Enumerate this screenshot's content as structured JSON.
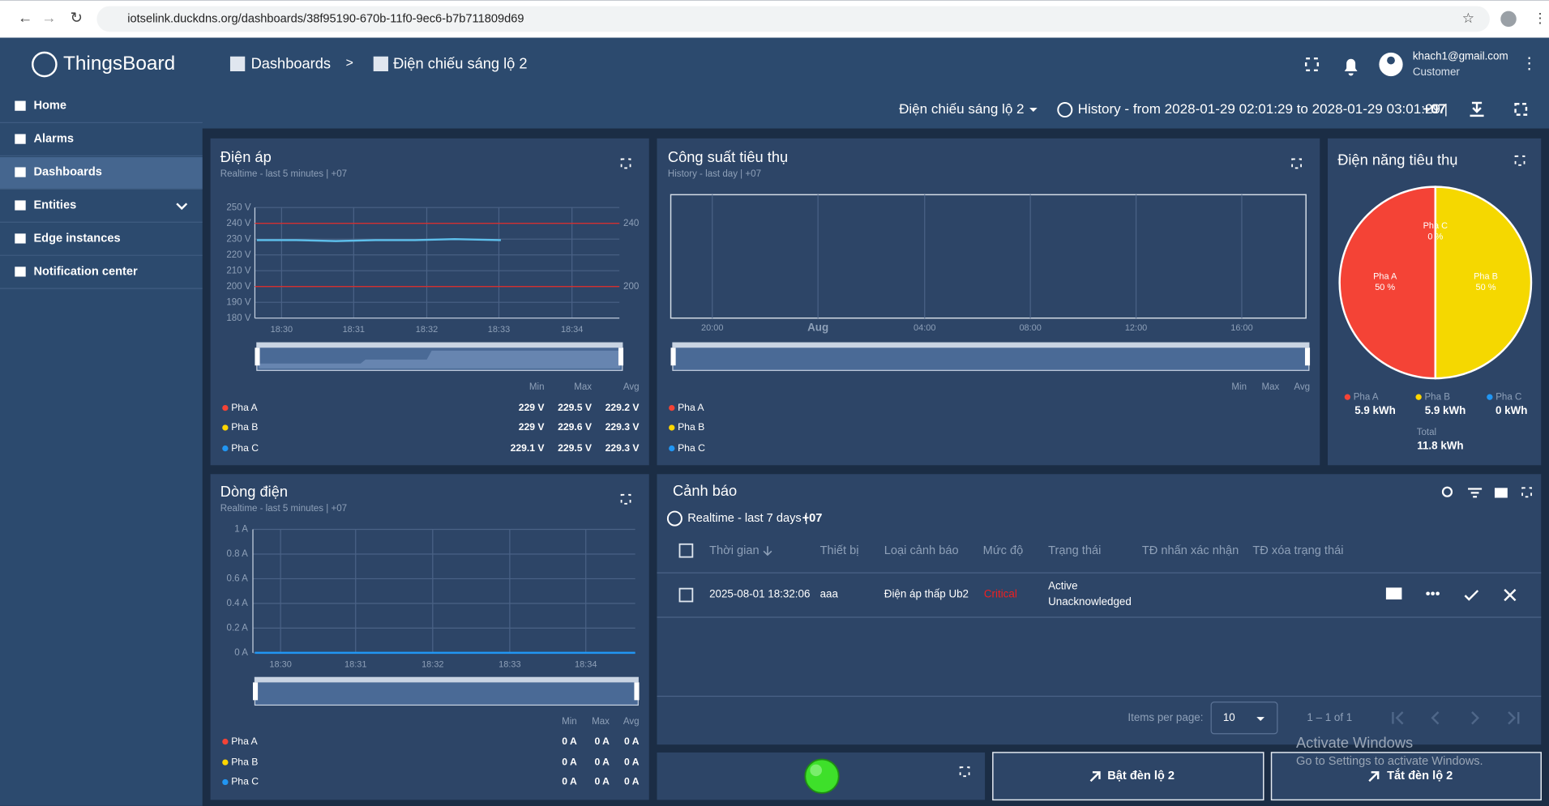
{
  "browser": {
    "url": "iotselink.duckdns.org/dashboards/38f95190-670b-11f0-9ec6-b7b711809d69"
  },
  "sidebar": {
    "logo": "ThingsBoard",
    "menu": [
      "Home",
      "Alarms",
      "Dashboards",
      "Entities",
      "Edge instances",
      "Notification center"
    ]
  },
  "header": {
    "breadcrumb": [
      "Dashboards",
      "Điện chiếu sáng lộ 2"
    ],
    "separator": ">",
    "user": {
      "email": "khach1@gmail.com",
      "role": "Customer"
    }
  },
  "toolbar": {
    "state": "Điện chiếu sáng lộ 2",
    "history": "History - from 2028-01-29 02:01:29 to 2028-01-29 03:01:29 |",
    "timezone": "+07"
  },
  "widgets": {
    "voltage": {
      "title": "Điện áp",
      "subtitle": "Realtime - last 5 minutes | +07",
      "yticks": [
        "250 V",
        "240 V",
        "230 V",
        "220 V",
        "210 V",
        "200 V",
        "190 V",
        "180 V"
      ],
      "xticks": [
        "18:30",
        "18:31",
        "18:32",
        "18:33",
        "18:34"
      ],
      "thresholds": [
        "240",
        "200"
      ],
      "legend_headers": [
        "Min",
        "Max",
        "Avg"
      ],
      "legend": [
        {
          "name": "Pha A",
          "color": "#f44336",
          "min": "229 V",
          "max": "229.5 V",
          "avg": "229.2 V"
        },
        {
          "name": "Pha B",
          "color": "#ffd600",
          "min": "229 V",
          "max": "229.6 V",
          "avg": "229.3 V"
        },
        {
          "name": "Pha C",
          "color": "#2196f3",
          "min": "229.1 V",
          "max": "229.5 V",
          "avg": "229.3 V"
        }
      ]
    },
    "power": {
      "title": "Công suất tiêu thụ",
      "subtitle": "History - last day | +07",
      "xticks": [
        "20:00",
        "Aug",
        "04:00",
        "08:00",
        "12:00",
        "16:00"
      ],
      "legend_headers": [
        "Min",
        "Max",
        "Avg"
      ],
      "legend": [
        {
          "name": "Pha A",
          "color": "#f44336"
        },
        {
          "name": "Pha B",
          "color": "#ffd600"
        },
        {
          "name": "Pha C",
          "color": "#2196f3"
        }
      ]
    },
    "energy": {
      "title": "Điện năng tiêu thụ",
      "slices": [
        {
          "name": "Pha A",
          "label": "50 %"
        },
        {
          "name": "Pha B",
          "label": "50 %"
        },
        {
          "name": "Pha C",
          "label": "0 %"
        }
      ],
      "legend": [
        {
          "name": "Pha A",
          "color": "#f44336",
          "value": "5.9 kWh"
        },
        {
          "name": "Pha B",
          "color": "#ffd600",
          "value": "5.9 kWh"
        },
        {
          "name": "Pha C",
          "color": "#2196f3",
          "value": "0 kWh"
        }
      ],
      "total": {
        "name": "Total",
        "value": "11.8 kWh"
      }
    },
    "current": {
      "title": "Dòng điện",
      "subtitle": "Realtime - last 5 minutes | +07",
      "yticks": [
        "1 A",
        "0.8 A",
        "0.6 A",
        "0.4 A",
        "0.2 A",
        "0 A"
      ],
      "xticks": [
        "18:30",
        "18:31",
        "18:32",
        "18:33",
        "18:34"
      ],
      "legend_headers": [
        "Min",
        "Max",
        "Avg"
      ],
      "legend": [
        {
          "name": "Pha A",
          "color": "#f44336",
          "min": "0 A",
          "max": "0 A",
          "avg": "0 A"
        },
        {
          "name": "Pha B",
          "color": "#ffd600",
          "min": "0 A",
          "max": "0 A",
          "avg": "0 A"
        },
        {
          "name": "Pha C",
          "color": "#2196f3",
          "min": "0 A",
          "max": "0 A",
          "avg": "0 A"
        }
      ]
    },
    "alarms": {
      "title": "Cảnh báo",
      "time": "Realtime - last 7 days |",
      "timezone": "+07",
      "columns": [
        "Thời gian",
        "Thiết bị",
        "Loại cảnh báo",
        "Mức độ",
        "Trạng thái",
        "TĐ nhấn xác nhận",
        "TĐ xóa trạng thái"
      ],
      "rows": [
        {
          "time": "2025-08-01 18:32:06",
          "device": "aaa",
          "type": "Điện áp thấp Ub2",
          "severity": "Critical",
          "status": [
            "Active",
            "Unacknowledged"
          ]
        }
      ],
      "items_per_page_label": "Items per page:",
      "items_per_page": "10",
      "range": "1 – 1 of 1"
    },
    "controls": {
      "on": "Bật đèn lộ 2",
      "off": "Tắt đèn lộ 2"
    }
  },
  "watermark": {
    "title": "Activate Windows",
    "text": "Go to Settings to activate Windows."
  }
}
